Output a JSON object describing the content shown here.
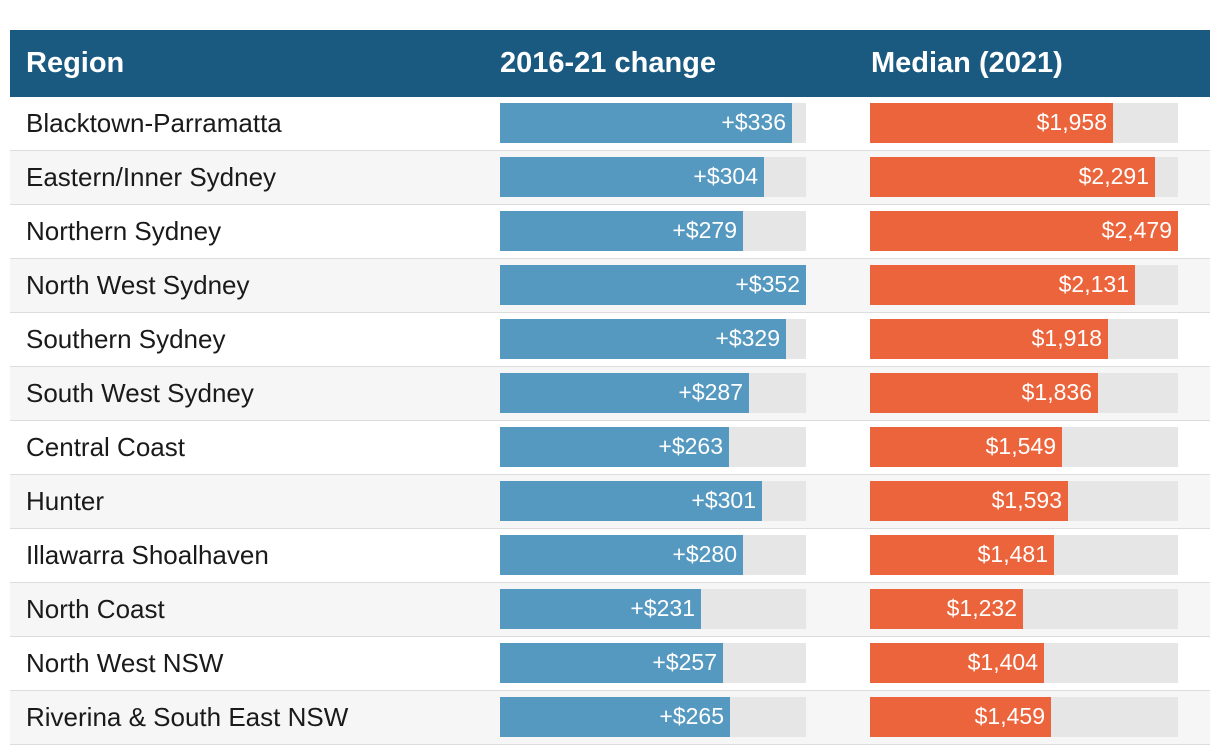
{
  "header": {
    "region": "Region",
    "change": "2016-21 change",
    "median": "Median (2021)"
  },
  "colors": {
    "header_bg": "#1b5a80",
    "change_bar": "#5699c0",
    "median_bar": "#ec643b",
    "track": "#e6e6e6"
  },
  "chart_data": {
    "type": "table",
    "columns": [
      "Region",
      "2016-21 change",
      "Median (2021)"
    ],
    "scales": {
      "change_max": 352,
      "median_max": 2479
    },
    "rows": [
      {
        "region": "Blacktown-Parramatta",
        "change": 336,
        "change_label": "+$336",
        "median": 1958,
        "median_label": "$1,958"
      },
      {
        "region": "Eastern/Inner Sydney",
        "change": 304,
        "change_label": "+$304",
        "median": 2291,
        "median_label": "$2,291"
      },
      {
        "region": "Northern Sydney",
        "change": 279,
        "change_label": "+$279",
        "median": 2479,
        "median_label": "$2,479"
      },
      {
        "region": "North West Sydney",
        "change": 352,
        "change_label": "+$352",
        "median": 2131,
        "median_label": "$2,131"
      },
      {
        "region": "Southern Sydney",
        "change": 329,
        "change_label": "+$329",
        "median": 1918,
        "median_label": "$1,918"
      },
      {
        "region": "South West Sydney",
        "change": 287,
        "change_label": "+$287",
        "median": 1836,
        "median_label": "$1,836"
      },
      {
        "region": "Central Coast",
        "change": 263,
        "change_label": "+$263",
        "median": 1549,
        "median_label": "$1,549"
      },
      {
        "region": "Hunter",
        "change": 301,
        "change_label": "+$301",
        "median": 1593,
        "median_label": "$1,593"
      },
      {
        "region": "Illawarra Shoalhaven",
        "change": 280,
        "change_label": "+$280",
        "median": 1481,
        "median_label": "$1,481"
      },
      {
        "region": "North Coast",
        "change": 231,
        "change_label": "+$231",
        "median": 1232,
        "median_label": "$1,232"
      },
      {
        "region": "North West NSW",
        "change": 257,
        "change_label": "+$257",
        "median": 1404,
        "median_label": "$1,404"
      },
      {
        "region": "Riverina & South East NSW",
        "change": 265,
        "change_label": "+$265",
        "median": 1459,
        "median_label": "$1,459"
      }
    ]
  }
}
